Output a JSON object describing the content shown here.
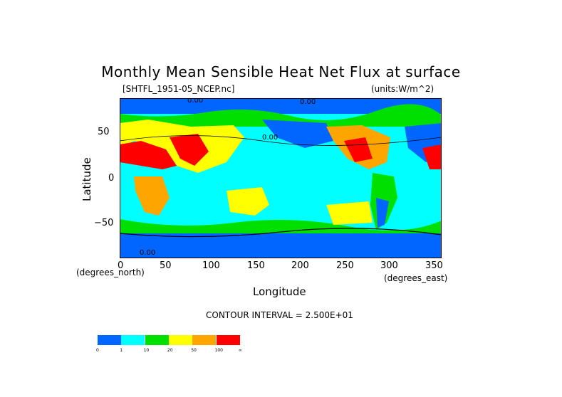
{
  "title": "Monthly Mean Sensible Heat Net Flux at surface",
  "dataset_label": "[SHTFL_1951-05_NCEP.nc]",
  "units_label": "(units:W/m^2)",
  "contour_interval": "CONTOUR INTERVAL = 2.500E+01",
  "axes": {
    "x_title": "Longitude",
    "y_title": "Latitude",
    "x_unit": "(degrees_east)",
    "y_unit": "(degrees_north)",
    "x_ticks": [
      "0",
      "50",
      "100",
      "150",
      "200",
      "250",
      "300",
      "350"
    ],
    "y_ticks": [
      "50",
      "0",
      "−50"
    ]
  },
  "contour_labels": [
    "0.00",
    "0.00",
    "0.00",
    "0.00"
  ],
  "legend": {
    "colors": [
      "#0066ff",
      "#00ffff",
      "#00e000",
      "#ffff00",
      "#ffa500",
      "#ff0000"
    ],
    "labels": [
      "0",
      "1",
      "10",
      "20",
      "50",
      "100",
      "∞"
    ]
  },
  "chart_data": {
    "type": "heatmap",
    "title": "Monthly Mean Sensible Heat Net Flux at surface",
    "xlabel": "Longitude",
    "ylabel": "Latitude",
    "xlim": [
      0,
      360
    ],
    "ylim": [
      -90,
      90
    ],
    "x_ticks": [
      0,
      50,
      100,
      150,
      200,
      250,
      300,
      350
    ],
    "y_ticks": [
      50,
      0,
      -50
    ],
    "units": "W/m^2",
    "color_bins": [
      {
        "from": 0,
        "to": 1,
        "color": "#0066ff"
      },
      {
        "from": 1,
        "to": 10,
        "color": "#00ffff"
      },
      {
        "from": 10,
        "to": 20,
        "color": "#00e000"
      },
      {
        "from": 20,
        "to": 50,
        "color": "#ffff00"
      },
      {
        "from": 50,
        "to": 100,
        "color": "#ffa500"
      },
      {
        "from": 100,
        "to": null,
        "color": "#ff0000"
      }
    ]
  }
}
